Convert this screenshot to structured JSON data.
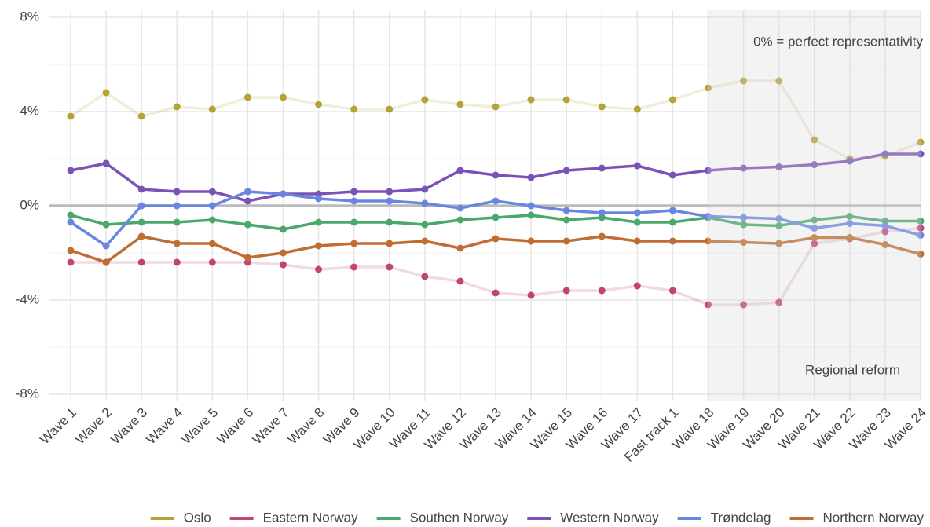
{
  "chart_data": {
    "type": "line",
    "categories": [
      "Wave 1",
      "Wave 2",
      "Wave 3",
      "Wave 4",
      "Wave 5",
      "Wave 6",
      "Wave 7",
      "Wave 8",
      "Wave 9",
      "Wave 10",
      "Wave 11",
      "Wave 12",
      "Wave 13",
      "Wave 14",
      "Wave 15",
      "Wave 16",
      "Wave 17",
      "Fast track 1",
      "Wave 18",
      "Wave 19",
      "Wave 20",
      "Wave 21",
      "Wave 22",
      "Wave 23",
      "Wave 24"
    ],
    "series": [
      {
        "name": "Oslo",
        "color": "#b5a33a",
        "line_alpha": 0.2,
        "values": [
          3.8,
          4.8,
          3.8,
          4.2,
          4.1,
          4.6,
          4.6,
          4.3,
          4.1,
          4.1,
          4.5,
          4.3,
          4.2,
          4.5,
          4.5,
          4.2,
          4.1,
          4.5,
          5.0,
          5.3,
          5.3,
          2.8,
          2.0,
          2.1,
          2.7
        ]
      },
      {
        "name": "Eastern Norway",
        "color": "#c0437a",
        "line_alpha": 0.2,
        "values": [
          -2.4,
          -2.4,
          -2.4,
          -2.4,
          -2.4,
          -2.4,
          -2.5,
          -2.7,
          -2.6,
          -2.6,
          -3.0,
          -3.2,
          -3.7,
          -3.8,
          -3.6,
          -3.6,
          -3.4,
          -3.6,
          -4.2,
          -4.2,
          -4.1,
          -1.6,
          -1.4,
          -1.1,
          -0.95
        ]
      },
      {
        "name": "Southen Norway",
        "color": "#4aa86a",
        "line_alpha": 1,
        "values": [
          -0.4,
          -0.8,
          -0.7,
          -0.7,
          -0.6,
          -0.8,
          -1.0,
          -0.7,
          -0.7,
          -0.7,
          -0.8,
          -0.6,
          -0.5,
          -0.4,
          -0.6,
          -0.5,
          -0.7,
          -0.7,
          -0.5,
          -0.8,
          -0.85,
          -0.6,
          -0.45,
          -0.65,
          -0.65
        ]
      },
      {
        "name": "Western Norway",
        "color": "#7b52b5",
        "line_alpha": 1,
        "values": [
          1.5,
          1.8,
          0.7,
          0.6,
          0.6,
          0.2,
          0.5,
          0.5,
          0.6,
          0.6,
          0.7,
          1.5,
          1.3,
          1.2,
          1.5,
          1.6,
          1.7,
          1.3,
          1.5,
          1.6,
          1.65,
          1.75,
          1.9,
          2.2,
          2.2
        ]
      },
      {
        "name": "Trøndelag",
        "color": "#6b86e0",
        "line_alpha": 1,
        "values": [
          -0.7,
          -1.7,
          0,
          0,
          0,
          0.6,
          0.5,
          0.3,
          0.2,
          0.2,
          0.1,
          -0.1,
          0.2,
          0,
          -0.2,
          -0.3,
          -0.3,
          -0.2,
          -0.45,
          -0.5,
          -0.55,
          -0.95,
          -0.75,
          -0.85,
          -1.25
        ]
      },
      {
        "name": "Northern Norway",
        "color": "#bf6d32",
        "line_alpha": 1,
        "values": [
          -1.9,
          -2.4,
          -1.3,
          -1.6,
          -1.6,
          -2.2,
          -2.0,
          -1.7,
          -1.6,
          -1.6,
          -1.5,
          -1.8,
          -1.4,
          -1.5,
          -1.5,
          -1.3,
          -1.5,
          -1.5,
          -1.5,
          -1.55,
          -1.6,
          -1.35,
          -1.35,
          -1.65,
          -2.05
        ]
      }
    ],
    "ylim": [
      -8.3,
      8.3
    ],
    "yticks": [
      {
        "value": -8,
        "label": "-8%"
      },
      {
        "value": -4,
        "label": "-4%"
      },
      {
        "value": 0,
        "label": "0%"
      },
      {
        "value": 4,
        "label": "4%"
      },
      {
        "value": 8,
        "label": "8%"
      }
    ],
    "minor_yticks": [
      -6,
      -2,
      2,
      6
    ],
    "grid": true,
    "reference_line": 0,
    "highlight": {
      "from": "Wave 18",
      "to": "Wave 24",
      "label": "Regional reform"
    },
    "annotation": "0% = perfect representativity",
    "legend": "bottom"
  }
}
